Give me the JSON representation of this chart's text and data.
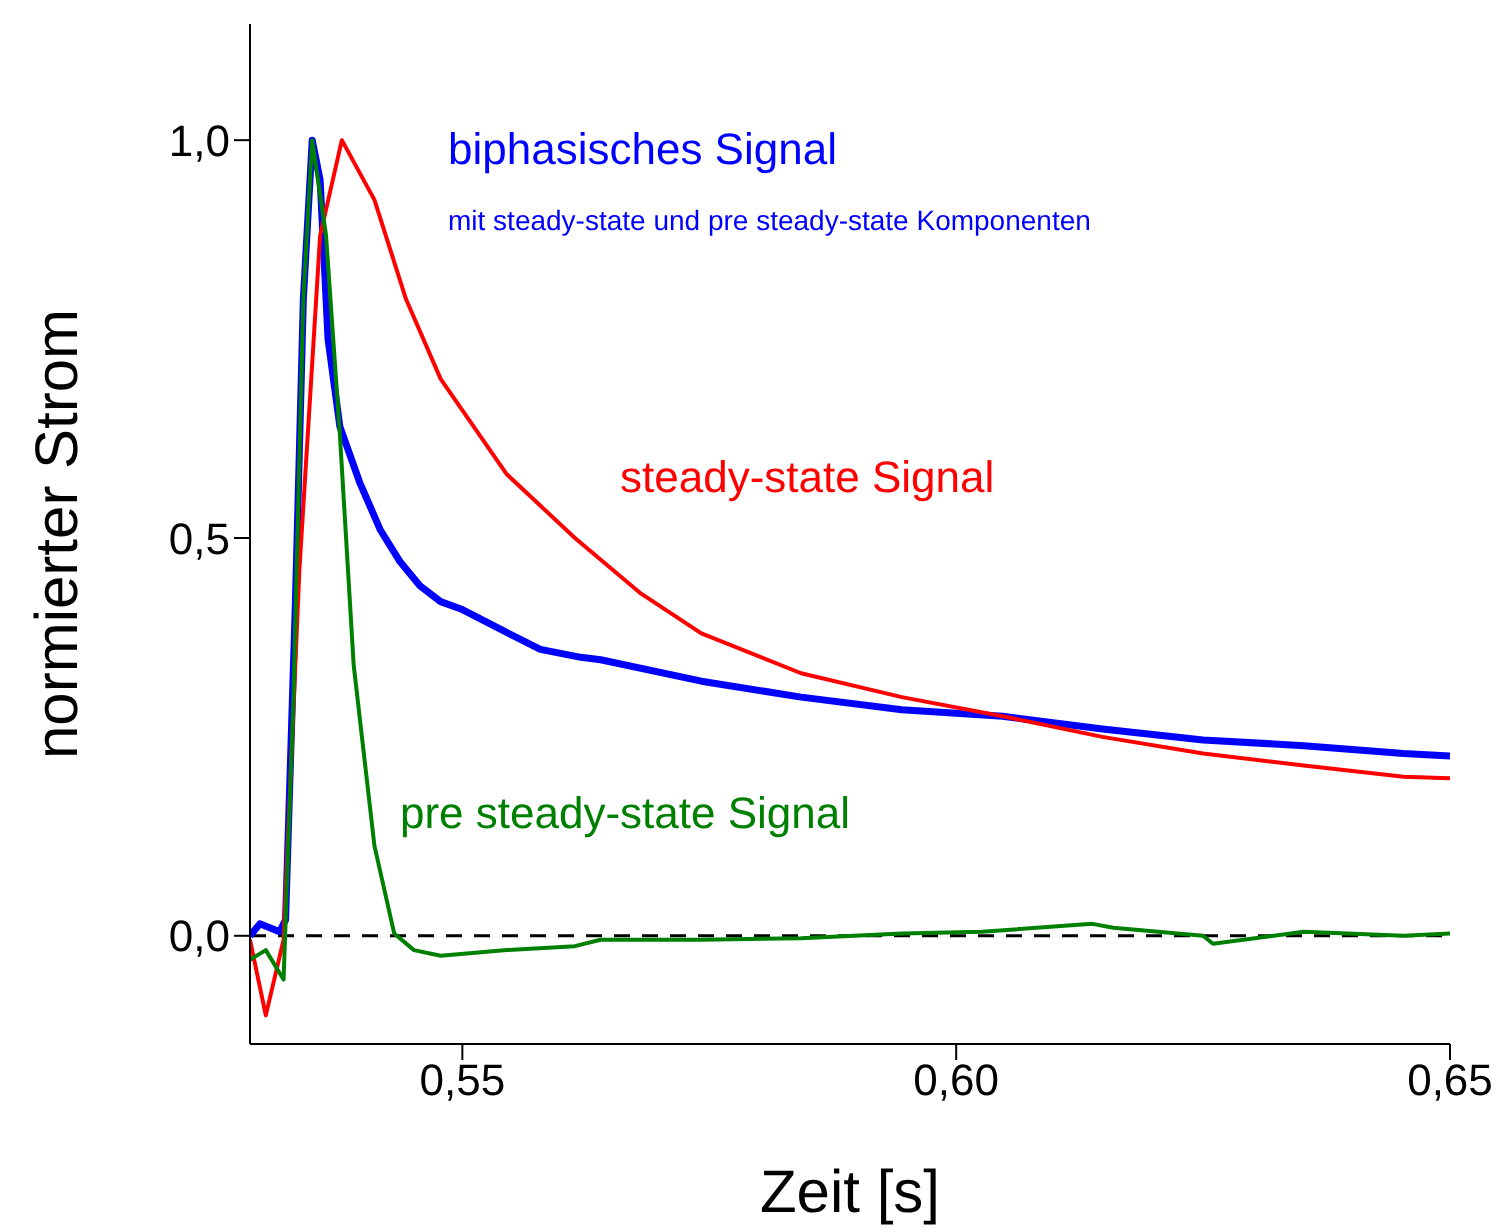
{
  "chart_data": {
    "type": "line",
    "xlabel": "Zeit [s]",
    "ylabel": "normierter Strom",
    "xlim": [
      0.5285,
      0.65
    ],
    "ylim": [
      -0.136,
      1.146
    ],
    "xticks": [
      {
        "value": 0.55,
        "label": "0,55"
      },
      {
        "value": 0.6,
        "label": "0,60"
      },
      {
        "value": 0.65,
        "label": "0,65"
      }
    ],
    "yticks": [
      {
        "value": 0,
        "label": "0,0"
      },
      {
        "value": 0.5,
        "label": "0,5"
      },
      {
        "value": 1,
        "label": "1,0"
      }
    ],
    "marker": "none",
    "line_style": "solid",
    "ref_lines": [
      {
        "axis": "y",
        "value": 0,
        "color": "#000000",
        "line_style": "dashed"
      }
    ],
    "annotations": [
      "mit steady-state und pre steady-state Komponenten"
    ],
    "series": [
      {
        "name": "biphasisches Signal",
        "color": "#0000ff",
        "x": [
          0.5285,
          0.5295,
          0.5315,
          0.5321,
          0.5331,
          0.5339,
          0.5348,
          0.5356,
          0.5364,
          0.5376,
          0.5396,
          0.5417,
          0.5437,
          0.5457,
          0.5478,
          0.55,
          0.5539,
          0.5579,
          0.562,
          0.564,
          0.5742,
          0.5843,
          0.5945,
          0.6047,
          0.6148,
          0.625,
          0.6352,
          0.6453,
          0.65
        ],
        "values": [
          0.0,
          0.015,
          0.005,
          0.02,
          0.42,
          0.8,
          1.0,
          0.95,
          0.75,
          0.64,
          0.57,
          0.51,
          0.47,
          0.44,
          0.42,
          0.41,
          0.385,
          0.36,
          0.35,
          0.347,
          0.32,
          0.3,
          0.284,
          0.276,
          0.26,
          0.246,
          0.239,
          0.229,
          0.226
        ]
      },
      {
        "name": "steady-state Signal",
        "color": "#ff0000",
        "x": [
          0.5285,
          0.5301,
          0.5319,
          0.5335,
          0.5356,
          0.5378,
          0.5411,
          0.5443,
          0.5478,
          0.5545,
          0.5614,
          0.5681,
          0.5742,
          0.5843,
          0.5945,
          0.6047,
          0.6148,
          0.625,
          0.6352,
          0.6453,
          0.65
        ],
        "values": [
          -0.005,
          -0.1,
          -0.005,
          0.46,
          0.88,
          1.0,
          0.925,
          0.8,
          0.7,
          0.58,
          0.5,
          0.43,
          0.38,
          0.33,
          0.3,
          0.276,
          0.25,
          0.229,
          0.214,
          0.2,
          0.198
        ]
      },
      {
        "name": "pre steady-state Signal",
        "color": "#008000",
        "x": [
          0.5285,
          0.5301,
          0.5319,
          0.5329,
          0.5339,
          0.5348,
          0.5362,
          0.5376,
          0.539,
          0.5411,
          0.5431,
          0.5451,
          0.5478,
          0.5545,
          0.5614,
          0.564,
          0.5742,
          0.5843,
          0.5945,
          0.6026,
          0.6138,
          0.6159,
          0.625,
          0.626,
          0.6352,
          0.6453,
          0.65
        ],
        "values": [
          -0.03,
          -0.018,
          -0.055,
          0.3,
          0.8,
          1.0,
          0.88,
          0.63,
          0.34,
          0.113,
          0.003,
          -0.018,
          -0.025,
          -0.018,
          -0.013,
          -0.005,
          -0.005,
          -0.003,
          0.003,
          0.005,
          0.015,
          0.01,
          0.0,
          -0.01,
          0.005,
          0.0,
          0.003
        ]
      }
    ]
  }
}
